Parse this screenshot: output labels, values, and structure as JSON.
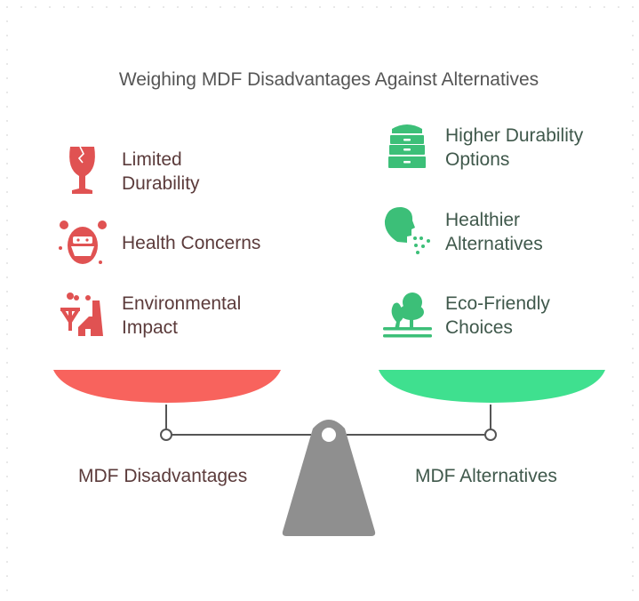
{
  "title": "Weighing MDF Disadvantages Against Alternatives",
  "left": {
    "label": "MDF Disadvantages",
    "color": "#e05252",
    "pan_color": "#f8635d",
    "items": [
      {
        "text": "Limited Durability",
        "line1": "Limited",
        "line2": "Durability",
        "icon": "broken-glass-icon"
      },
      {
        "text": "Health Concerns",
        "line1": "Health Concerns",
        "line2": "",
        "icon": "masked-face-icon"
      },
      {
        "text": "Environmental Impact",
        "line1": "Environmental",
        "line2": "Impact",
        "icon": "pollution-factory-icon"
      }
    ]
  },
  "right": {
    "label": "MDF Alternatives",
    "color": "#3cbf78",
    "pan_color": "#3fe08f",
    "items": [
      {
        "text": "Higher Durability Options",
        "line1": "Higher Durability",
        "line2": "Options",
        "icon": "drawer-cabinet-icon"
      },
      {
        "text": "Healthier Alternatives",
        "line1": "Healthier",
        "line2": "Alternatives",
        "icon": "breathing-head-icon"
      },
      {
        "text": "Eco-Friendly Choices",
        "line1": "Eco-Friendly",
        "line2": "Choices",
        "icon": "trees-icon"
      }
    ]
  },
  "fulcrum_color": "#8f8f8f"
}
